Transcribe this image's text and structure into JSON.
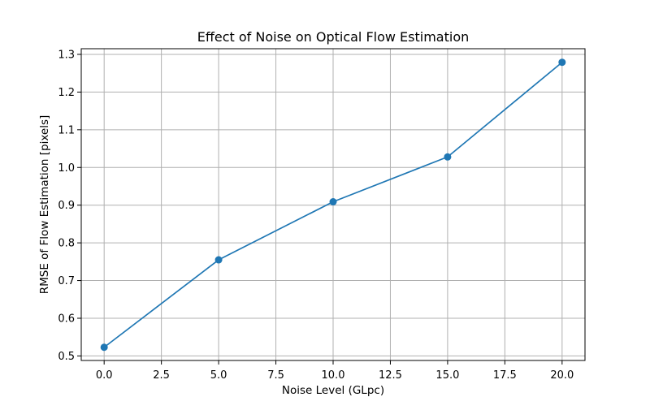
{
  "chart_data": {
    "type": "line",
    "title": "Effect of Noise on Optical Flow Estimation",
    "xlabel": "Noise Level (GLpc)",
    "ylabel": "RMSE of Flow Estimation [pixels]",
    "x": [
      0,
      5,
      10,
      15,
      20
    ],
    "series": [
      {
        "values": [
          0.523,
          0.755,
          0.909,
          1.028,
          1.279
        ],
        "color": "#1f77b4",
        "marker": "circle"
      }
    ],
    "xlim": [
      -1,
      21
    ],
    "ylim": [
      0.488,
      1.315
    ],
    "xticks": [
      0.0,
      2.5,
      5.0,
      7.5,
      10.0,
      12.5,
      15.0,
      17.5,
      20.0
    ],
    "xtick_labels": [
      "0.0",
      "2.5",
      "5.0",
      "7.5",
      "10.0",
      "12.5",
      "15.0",
      "17.5",
      "20.0"
    ],
    "yticks": [
      0.5,
      0.6,
      0.7,
      0.8,
      0.9,
      1.0,
      1.1,
      1.2,
      1.3
    ],
    "ytick_labels": [
      "0.5",
      "0.6",
      "0.7",
      "0.8",
      "0.9",
      "1.0",
      "1.1",
      "1.2",
      "1.3"
    ],
    "grid": true,
    "legend": "none"
  }
}
